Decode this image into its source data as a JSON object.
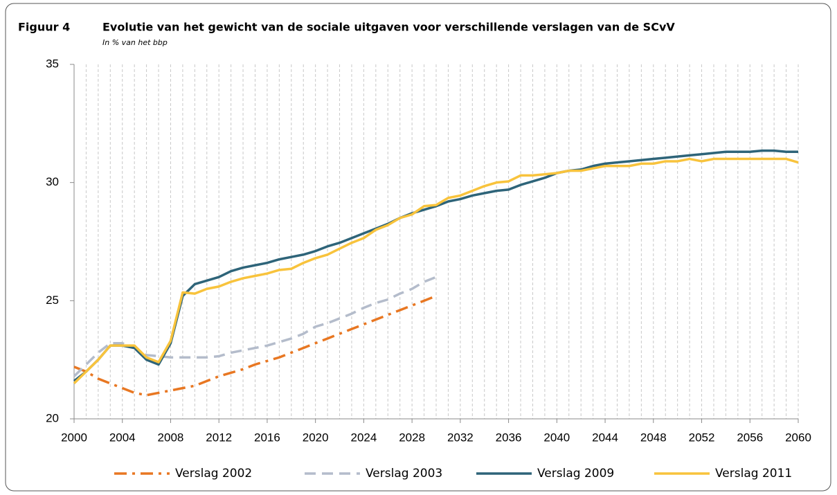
{
  "chart_data": {
    "type": "line",
    "figure_label": "Figuur 4",
    "title": "Evolutie van het gewicht van de sociale uitgaven voor verschillende verslagen van de SCvV",
    "subtitle": "In % van het bbp",
    "x": [
      2000,
      2001,
      2002,
      2003,
      2004,
      2005,
      2006,
      2007,
      2008,
      2009,
      2010,
      2011,
      2012,
      2013,
      2014,
      2015,
      2016,
      2017,
      2018,
      2019,
      2020,
      2021,
      2022,
      2023,
      2024,
      2025,
      2026,
      2027,
      2028,
      2029,
      2030,
      2031,
      2032,
      2033,
      2034,
      2035,
      2036,
      2037,
      2038,
      2039,
      2040,
      2041,
      2042,
      2043,
      2044,
      2045,
      2046,
      2047,
      2048,
      2049,
      2050,
      2051,
      2052,
      2053,
      2054,
      2055,
      2056,
      2057,
      2058,
      2059,
      2060
    ],
    "xlim": [
      2000,
      2060
    ],
    "xticks": [
      2000,
      2004,
      2008,
      2012,
      2016,
      2020,
      2024,
      2028,
      2032,
      2036,
      2040,
      2044,
      2048,
      2052,
      2056,
      2060
    ],
    "ylim": [
      20,
      35
    ],
    "yticks": [
      20,
      25,
      30,
      35
    ],
    "grid": true,
    "legend": "bottom",
    "series": [
      {
        "name": "Verslag 2002",
        "color": "#e87722",
        "style": "dashdot",
        "values": [
          22.2,
          22.0,
          21.7,
          21.5,
          21.3,
          21.1,
          21.0,
          21.1,
          21.2,
          21.3,
          21.4,
          21.6,
          21.8,
          21.95,
          22.1,
          22.3,
          22.45,
          22.6,
          22.8,
          23.0,
          23.2,
          23.4,
          23.6,
          23.8,
          24.0,
          24.2,
          24.4,
          24.6,
          24.8,
          25.0,
          25.2,
          null,
          null,
          null,
          null,
          null,
          null,
          null,
          null,
          null,
          null,
          null,
          null,
          null,
          null,
          null,
          null,
          null,
          null,
          null,
          null,
          null,
          null,
          null,
          null,
          null,
          null,
          null,
          null,
          null,
          null
        ]
      },
      {
        "name": "Verslag 2003",
        "color": "#b4bccb",
        "style": "dashed",
        "values": [
          21.8,
          22.3,
          22.8,
          23.2,
          23.2,
          23.0,
          22.7,
          22.65,
          22.6,
          22.6,
          22.6,
          22.6,
          22.65,
          22.8,
          22.9,
          23.0,
          23.1,
          23.25,
          23.4,
          23.6,
          23.9,
          24.05,
          24.25,
          24.45,
          24.7,
          24.9,
          25.05,
          25.3,
          25.5,
          25.8,
          26.0,
          null,
          null,
          null,
          null,
          null,
          null,
          null,
          null,
          null,
          null,
          null,
          null,
          null,
          null,
          null,
          null,
          null,
          null,
          null,
          null,
          null,
          null,
          null,
          null,
          null,
          null,
          null,
          null,
          null,
          null
        ]
      },
      {
        "name": "Verslag 2009",
        "color": "#2e6479",
        "style": "solid",
        "values": [
          21.6,
          22.0,
          22.5,
          23.1,
          23.1,
          23.0,
          22.5,
          22.3,
          23.2,
          25.2,
          25.7,
          25.85,
          26.0,
          26.25,
          26.4,
          26.5,
          26.6,
          26.75,
          26.85,
          26.95,
          27.1,
          27.3,
          27.45,
          27.65,
          27.85,
          28.05,
          28.25,
          28.5,
          28.7,
          28.85,
          29.0,
          29.2,
          29.3,
          29.45,
          29.55,
          29.65,
          29.7,
          29.9,
          30.05,
          30.2,
          30.4,
          30.5,
          30.55,
          30.7,
          30.8,
          30.85,
          30.9,
          30.95,
          31.0,
          31.05,
          31.1,
          31.15,
          31.2,
          31.25,
          31.3,
          31.3,
          31.3,
          31.35,
          31.35,
          31.3,
          31.3
        ]
      },
      {
        "name": "Verslag 2011",
        "color": "#f8c33c",
        "style": "solid",
        "values": [
          21.5,
          22.0,
          22.5,
          23.1,
          23.1,
          23.1,
          22.6,
          22.4,
          23.3,
          25.35,
          25.3,
          25.5,
          25.6,
          25.8,
          25.95,
          26.05,
          26.15,
          26.3,
          26.35,
          26.6,
          26.8,
          26.95,
          27.2,
          27.45,
          27.65,
          28.0,
          28.2,
          28.5,
          28.65,
          29.0,
          29.05,
          29.35,
          29.45,
          29.65,
          29.85,
          30.0,
          30.05,
          30.3,
          30.3,
          30.35,
          30.4,
          30.5,
          30.5,
          30.6,
          30.7,
          30.7,
          30.7,
          30.8,
          30.8,
          30.9,
          30.9,
          31.0,
          30.9,
          31.0,
          31.0,
          31.0,
          31.0,
          31.0,
          31.0,
          31.0,
          30.85
        ]
      }
    ]
  }
}
